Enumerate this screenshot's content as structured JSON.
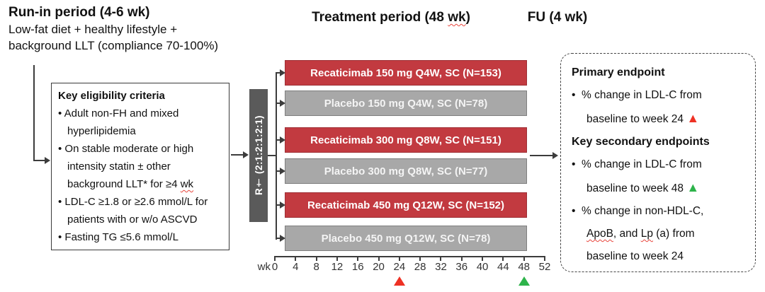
{
  "runin": {
    "title": "Run-in period (4-6 wk)",
    "line1": "Low-fat diet + healthy lifestyle +",
    "line2": "background LLT (compliance 70-100%)"
  },
  "titles": {
    "treatment": [
      {
        "seg": [
          {
            "t": "Treatment period (48 "
          },
          {
            "t": "wk",
            "cls": "misspell"
          },
          {
            "t": ")"
          }
        ]
      }
    ],
    "fu": "FU (4 wk)"
  },
  "eligibility": {
    "title": "Key eligibility criteria",
    "lines": [
      {
        "seg": [
          {
            "t": "• Adult non-FH and mixed"
          }
        ]
      },
      {
        "ind": true,
        "seg": [
          {
            "t": "hyperlipidemia"
          }
        ]
      },
      {
        "seg": [
          {
            "t": "• On stable moderate or high"
          }
        ]
      },
      {
        "ind": true,
        "seg": [
          {
            "t": "intensity statin ± other"
          }
        ]
      },
      {
        "ind": true,
        "seg": [
          {
            "t": "background LLT* for ≥4 "
          },
          {
            "t": "wk",
            "cls": "misspell"
          }
        ]
      },
      {
        "seg": [
          {
            "t": "• LDL-C ≥1.8 or ≥2.6 mmol/L for"
          }
        ]
      },
      {
        "ind": true,
        "seg": [
          {
            "t": "patients with or w/o ASCVD"
          }
        ]
      },
      {
        "seg": [
          {
            "t": "• Fasting TG ≤5.6 mmol/L"
          }
        ]
      }
    ]
  },
  "randomization": {
    "label": "R† (2:1:2:1:2:1)"
  },
  "arms": [
    {
      "name": "recaticimab-150-q4w",
      "type": "active",
      "label": "Recaticimab 150 mg Q4W, SC (N=153)"
    },
    {
      "name": "placebo-150-q4w",
      "type": "placebo",
      "label": "Placebo 150 mg Q4W, SC (N=78)"
    },
    {
      "name": "recaticimab-300-q8w",
      "type": "active",
      "label": "Recaticimab 300 mg Q8W, SC (N=151)"
    },
    {
      "name": "placebo-300-q8w",
      "type": "placebo",
      "label": "Placebo 300 mg Q8W, SC (N=77)"
    },
    {
      "name": "recaticimab-450-q12w",
      "type": "active",
      "label": "Recaticimab 450 mg Q12W, SC (N=152)"
    },
    {
      "name": "placebo-450-q12w",
      "type": "placebo",
      "label": "Placebo 450 mg Q12W, SC (N=78)"
    }
  ],
  "endpoints": {
    "lines": [
      {
        "b": true,
        "seg": [
          {
            "t": "Primary endpoint"
          }
        ]
      },
      {
        "seg": [
          {
            "t": "•  % change in LDL-C from"
          }
        ]
      },
      {
        "ind": true,
        "seg": [
          {
            "t": "baseline to week 24 "
          },
          {
            "t": "▲",
            "cls": "tri-red"
          }
        ]
      },
      {
        "b": true,
        "seg": [
          {
            "t": "Key secondary endpoints"
          }
        ]
      },
      {
        "seg": [
          {
            "t": "•  % change in LDL-C from"
          }
        ]
      },
      {
        "ind": true,
        "seg": [
          {
            "t": "baseline to week 48 "
          },
          {
            "t": "▲",
            "cls": "tri-green"
          }
        ]
      },
      {
        "seg": [
          {
            "t": "•  % change in non-HDL-C,"
          }
        ]
      },
      {
        "ind": true,
        "seg": [
          {
            "t": "ApoB",
            "cls": "misspell"
          },
          {
            "t": ", and "
          },
          {
            "t": "Lp",
            "cls": "misspell"
          },
          {
            "t": " (a) from"
          }
        ]
      },
      {
        "ind": true,
        "seg": [
          {
            "t": "baseline to week 24"
          }
        ]
      }
    ]
  },
  "axis": {
    "unit_label": "wk",
    "ticks": [
      "0",
      "4",
      "8",
      "12",
      "16",
      "20",
      "24",
      "28",
      "32",
      "36",
      "40",
      "44",
      "48",
      "52"
    ],
    "markers": [
      {
        "week": "24",
        "color_key": "marker_red",
        "name": "primary-endpoint-week24-marker"
      },
      {
        "week": "48",
        "color_key": "marker_green",
        "name": "secondary-endpoint-week48-marker"
      }
    ]
  },
  "colors": {
    "arm_active": "#C23A40",
    "arm_active_border": "#9E3036",
    "arm_placebo": "#A8A8A8",
    "arm_placebo_border": "#7F7F7F",
    "randomization_fill": "#5A5A5A",
    "marker_red": "#EE3124",
    "marker_green": "#2DB34A",
    "spellcheck_underline": "#E8453C"
  }
}
